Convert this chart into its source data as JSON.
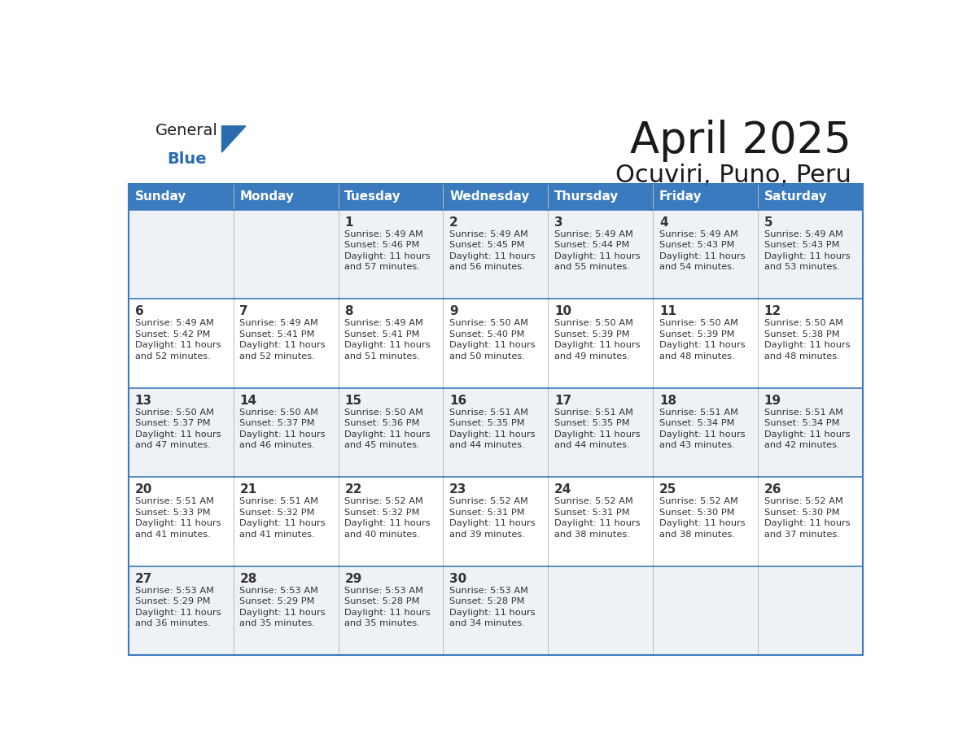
{
  "title": "April 2025",
  "subtitle": "Ocuviri, Puno, Peru",
  "header_bg": "#3a7bbf",
  "header_text_color": "#ffffff",
  "cell_bg_white": "#ffffff",
  "cell_bg_gray": "#eef2f7",
  "border_color": "#3a7bbf",
  "text_color": "#333333",
  "logo_text_color": "#222222",
  "logo_blue_color": "#2b6cb0",
  "days_of_week": [
    "Sunday",
    "Monday",
    "Tuesday",
    "Wednesday",
    "Thursday",
    "Friday",
    "Saturday"
  ],
  "calendar_data": [
    [
      {
        "day": "",
        "info": ""
      },
      {
        "day": "",
        "info": ""
      },
      {
        "day": "1",
        "info": "Sunrise: 5:49 AM\nSunset: 5:46 PM\nDaylight: 11 hours\nand 57 minutes."
      },
      {
        "day": "2",
        "info": "Sunrise: 5:49 AM\nSunset: 5:45 PM\nDaylight: 11 hours\nand 56 minutes."
      },
      {
        "day": "3",
        "info": "Sunrise: 5:49 AM\nSunset: 5:44 PM\nDaylight: 11 hours\nand 55 minutes."
      },
      {
        "day": "4",
        "info": "Sunrise: 5:49 AM\nSunset: 5:43 PM\nDaylight: 11 hours\nand 54 minutes."
      },
      {
        "day": "5",
        "info": "Sunrise: 5:49 AM\nSunset: 5:43 PM\nDaylight: 11 hours\nand 53 minutes."
      }
    ],
    [
      {
        "day": "6",
        "info": "Sunrise: 5:49 AM\nSunset: 5:42 PM\nDaylight: 11 hours\nand 52 minutes."
      },
      {
        "day": "7",
        "info": "Sunrise: 5:49 AM\nSunset: 5:41 PM\nDaylight: 11 hours\nand 52 minutes."
      },
      {
        "day": "8",
        "info": "Sunrise: 5:49 AM\nSunset: 5:41 PM\nDaylight: 11 hours\nand 51 minutes."
      },
      {
        "day": "9",
        "info": "Sunrise: 5:50 AM\nSunset: 5:40 PM\nDaylight: 11 hours\nand 50 minutes."
      },
      {
        "day": "10",
        "info": "Sunrise: 5:50 AM\nSunset: 5:39 PM\nDaylight: 11 hours\nand 49 minutes."
      },
      {
        "day": "11",
        "info": "Sunrise: 5:50 AM\nSunset: 5:39 PM\nDaylight: 11 hours\nand 48 minutes."
      },
      {
        "day": "12",
        "info": "Sunrise: 5:50 AM\nSunset: 5:38 PM\nDaylight: 11 hours\nand 48 minutes."
      }
    ],
    [
      {
        "day": "13",
        "info": "Sunrise: 5:50 AM\nSunset: 5:37 PM\nDaylight: 11 hours\nand 47 minutes."
      },
      {
        "day": "14",
        "info": "Sunrise: 5:50 AM\nSunset: 5:37 PM\nDaylight: 11 hours\nand 46 minutes."
      },
      {
        "day": "15",
        "info": "Sunrise: 5:50 AM\nSunset: 5:36 PM\nDaylight: 11 hours\nand 45 minutes."
      },
      {
        "day": "16",
        "info": "Sunrise: 5:51 AM\nSunset: 5:35 PM\nDaylight: 11 hours\nand 44 minutes."
      },
      {
        "day": "17",
        "info": "Sunrise: 5:51 AM\nSunset: 5:35 PM\nDaylight: 11 hours\nand 44 minutes."
      },
      {
        "day": "18",
        "info": "Sunrise: 5:51 AM\nSunset: 5:34 PM\nDaylight: 11 hours\nand 43 minutes."
      },
      {
        "day": "19",
        "info": "Sunrise: 5:51 AM\nSunset: 5:34 PM\nDaylight: 11 hours\nand 42 minutes."
      }
    ],
    [
      {
        "day": "20",
        "info": "Sunrise: 5:51 AM\nSunset: 5:33 PM\nDaylight: 11 hours\nand 41 minutes."
      },
      {
        "day": "21",
        "info": "Sunrise: 5:51 AM\nSunset: 5:32 PM\nDaylight: 11 hours\nand 41 minutes."
      },
      {
        "day": "22",
        "info": "Sunrise: 5:52 AM\nSunset: 5:32 PM\nDaylight: 11 hours\nand 40 minutes."
      },
      {
        "day": "23",
        "info": "Sunrise: 5:52 AM\nSunset: 5:31 PM\nDaylight: 11 hours\nand 39 minutes."
      },
      {
        "day": "24",
        "info": "Sunrise: 5:52 AM\nSunset: 5:31 PM\nDaylight: 11 hours\nand 38 minutes."
      },
      {
        "day": "25",
        "info": "Sunrise: 5:52 AM\nSunset: 5:30 PM\nDaylight: 11 hours\nand 38 minutes."
      },
      {
        "day": "26",
        "info": "Sunrise: 5:52 AM\nSunset: 5:30 PM\nDaylight: 11 hours\nand 37 minutes."
      }
    ],
    [
      {
        "day": "27",
        "info": "Sunrise: 5:53 AM\nSunset: 5:29 PM\nDaylight: 11 hours\nand 36 minutes."
      },
      {
        "day": "28",
        "info": "Sunrise: 5:53 AM\nSunset: 5:29 PM\nDaylight: 11 hours\nand 35 minutes."
      },
      {
        "day": "29",
        "info": "Sunrise: 5:53 AM\nSunset: 5:28 PM\nDaylight: 11 hours\nand 35 minutes."
      },
      {
        "day": "30",
        "info": "Sunrise: 5:53 AM\nSunset: 5:28 PM\nDaylight: 11 hours\nand 34 minutes."
      },
      {
        "day": "",
        "info": ""
      },
      {
        "day": "",
        "info": ""
      },
      {
        "day": "",
        "info": ""
      }
    ]
  ]
}
